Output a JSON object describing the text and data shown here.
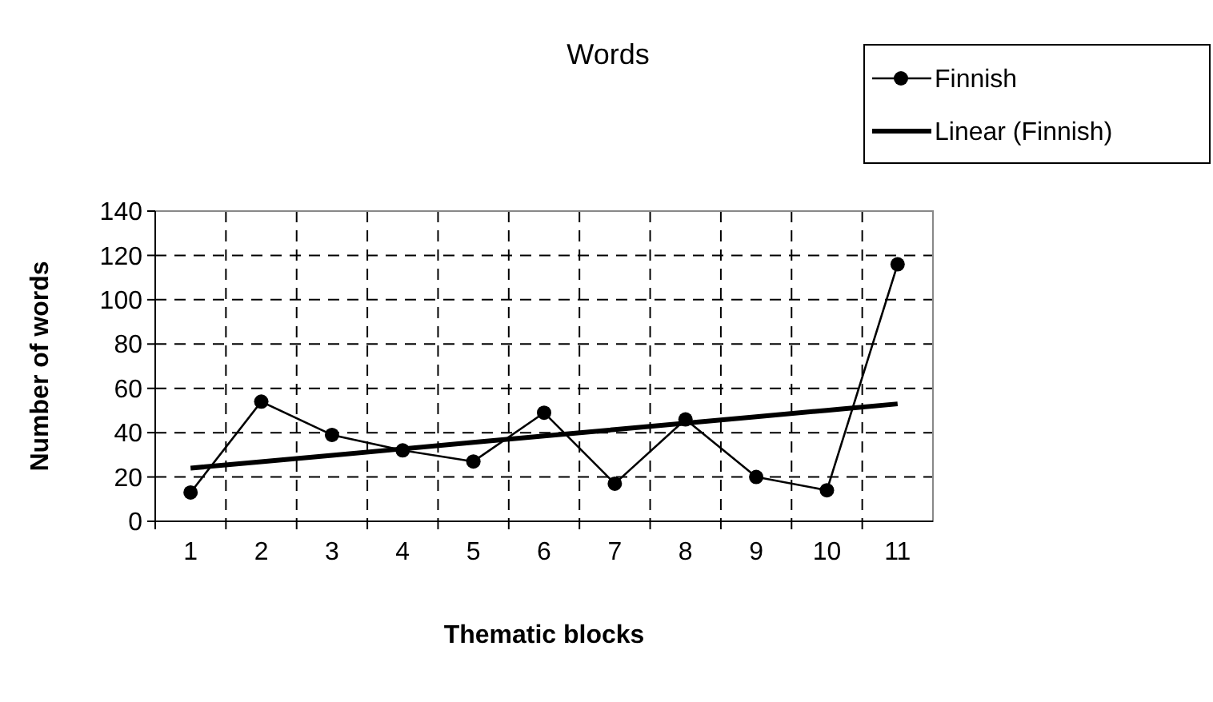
{
  "chart_data": {
    "type": "line",
    "title": "Words",
    "xlabel": "Thematic blocks",
    "ylabel": "Number of words",
    "categories": [
      "1",
      "2",
      "3",
      "4",
      "5",
      "6",
      "7",
      "8",
      "9",
      "10",
      "11"
    ],
    "series": [
      {
        "name": "Finnish",
        "color": "#000000",
        "values": [
          13,
          54,
          39,
          32,
          27,
          49,
          17,
          46,
          20,
          14,
          116
        ],
        "marker": "circle",
        "line_style": "solid"
      },
      {
        "name": "Linear (Finnish)",
        "type": "line",
        "color": "#000000",
        "values": [
          24,
          26.9,
          29.8,
          32.7,
          35.6,
          38.5,
          41.4,
          44.3,
          47.2,
          50.1,
          53
        ],
        "marker": "none",
        "line_style": "solid"
      }
    ],
    "ylim": [
      0,
      140
    ],
    "yticks": [
      0,
      20,
      40,
      60,
      80,
      100,
      120,
      140
    ],
    "grid": true,
    "legend": "top right"
  }
}
